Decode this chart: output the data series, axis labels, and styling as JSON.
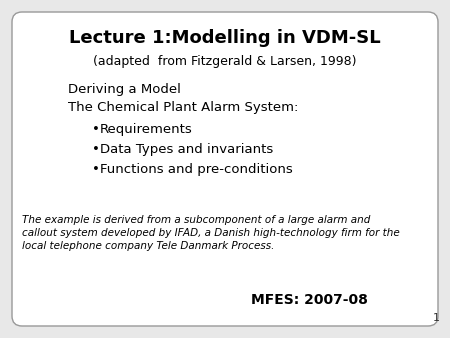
{
  "bg_color": "#e8e8e8",
  "slide_bg": "#ffffff",
  "title": "Lecture 1:Modelling in VDM-SL",
  "subtitle": "(adapted  from Fitzgerald & Larsen, 1998)",
  "body_line1": "Deriving a Model",
  "body_line2": "The Chemical Plant Alarm System:",
  "bullets": [
    "Requirements",
    "Data Types and invariants",
    "Functions and pre-conditions"
  ],
  "footnote_line1": "The example is derived from a subcomponent of a large alarm and",
  "footnote_line2": "callout system developed by IFAD, a Danish high-technology firm for the",
  "footnote_line3": "local telephone company Tele Danmark Process.",
  "footer": "MFES: 2007-08",
  "slide_number": "1",
  "border_color": "#999999",
  "title_fontsize": 13,
  "subtitle_fontsize": 9,
  "body_fontsize": 9.5,
  "bullet_fontsize": 9.5,
  "footnote_fontsize": 7.5,
  "footer_fontsize": 10
}
